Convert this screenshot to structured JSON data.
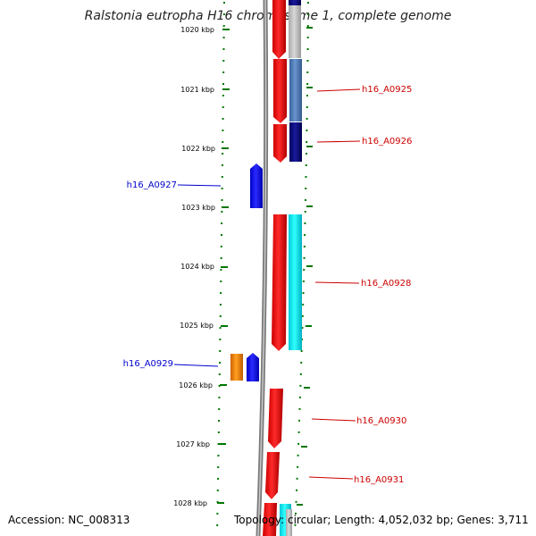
{
  "title": "Ralstonia eutropha H16 chromosome 1, complete genome",
  "footer": {
    "accession": "Accession: NC_008313",
    "summary": "Topology: circular; Length: 4,052,032 bp; Genes: 3,711"
  },
  "colors": {
    "forward_cds": "#ff0000",
    "reverse_cds": "#0000ff",
    "left_label": "#0000cc",
    "right_label": "#cc0000",
    "tick": "#007700",
    "backbone": "#808080"
  },
  "scale_labels": [
    "1020 kbp",
    "1021 kbp",
    "1022 kbp",
    "1023 kbp",
    "1024 kbp",
    "1025 kbp",
    "1026 kbp",
    "1027 kbp",
    "1028 kbp"
  ],
  "gene_labels_left": [
    "h16_A0927",
    "h16_A0929"
  ],
  "gene_labels_right": [
    "h16_A0925",
    "h16_A0926",
    "h16_A0928",
    "h16_A0930",
    "h16_A0931"
  ]
}
